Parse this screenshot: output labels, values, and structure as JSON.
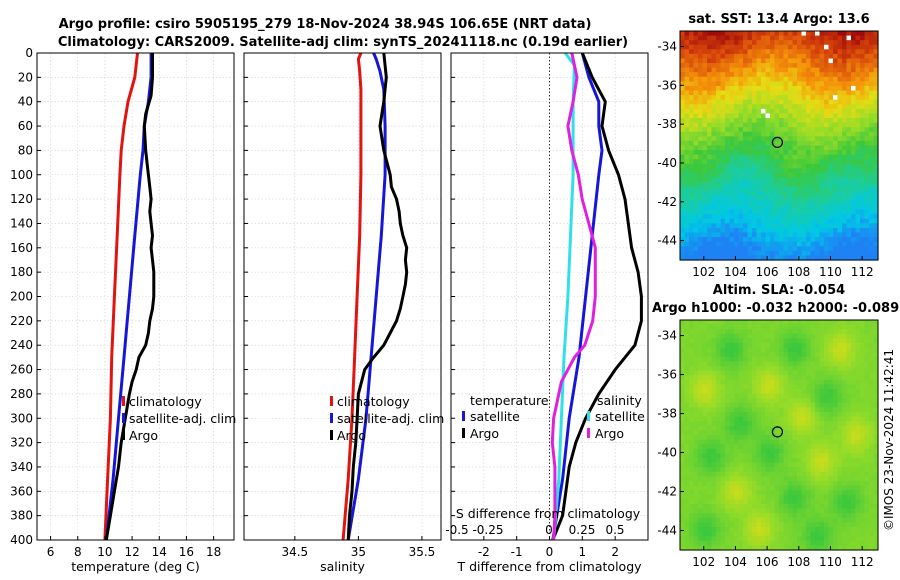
{
  "header": {
    "line1": "Argo profile: csiro 5905195_279 18-Nov-2024 38.94S 106.65E (NRT data)",
    "line2": "Climatology: CARS2009. Satellite-adj clim: synTS_20241118.nc (0.19d earlier)"
  },
  "colors": {
    "climatology": "#e0150f",
    "sat_temp": "#1616d8",
    "argo": "#000000",
    "sat_sal": "#30e0e8",
    "argo_sal": "#e020e0"
  },
  "chart_data": [
    {
      "id": "temperature",
      "type": "line",
      "xlabel": "temperature (deg C)",
      "ylabel": "",
      "xlim": [
        5,
        19.5
      ],
      "ylim": [
        400,
        0
      ],
      "xticks": [
        "6",
        "8",
        "10",
        "12",
        "14",
        "16",
        "18"
      ],
      "xtick_values": [
        6,
        8,
        10,
        12,
        14,
        16,
        18
      ],
      "yticks": [
        "0",
        "20",
        "40",
        "60",
        "80",
        "100",
        "120",
        "140",
        "160",
        "180",
        "200",
        "220",
        "240",
        "260",
        "280",
        "300",
        "320",
        "340",
        "360",
        "380",
        "400"
      ],
      "ytick_values": [
        0,
        20,
        40,
        60,
        80,
        100,
        120,
        140,
        160,
        180,
        200,
        220,
        240,
        260,
        280,
        300,
        320,
        340,
        360,
        380,
        400
      ],
      "legend": [
        "climatology",
        "satellite-adj. clim",
        "Argo"
      ],
      "series": [
        {
          "name": "climatology",
          "color": "#e0150f",
          "depth": [
            0,
            20,
            40,
            60,
            80,
            100,
            150,
            200,
            250,
            300,
            350,
            400
          ],
          "values": [
            12.4,
            12.2,
            11.7,
            11.4,
            11.2,
            11.1,
            10.9,
            10.7,
            10.5,
            10.4,
            10.2,
            10.0
          ]
        },
        {
          "name": "satellite-adj. clim",
          "color": "#1616d8",
          "depth": [
            0,
            20,
            40,
            60,
            80,
            100,
            150,
            200,
            250,
            300,
            350,
            400
          ],
          "values": [
            13.4,
            13.4,
            13.2,
            12.9,
            12.8,
            12.6,
            12.2,
            11.8,
            11.4,
            11.0,
            10.6,
            10.1
          ]
        },
        {
          "name": "Argo",
          "color": "#000000",
          "depth": [
            0,
            20,
            35,
            50,
            60,
            80,
            90,
            100,
            110,
            120,
            130,
            140,
            150,
            160,
            170,
            180,
            190,
            200,
            210,
            220,
            230,
            240,
            250,
            260,
            270,
            280,
            300,
            320,
            340,
            360,
            380,
            400
          ],
          "values": [
            13.5,
            13.5,
            13.4,
            13.0,
            12.9,
            13.0,
            13.1,
            13.2,
            13.3,
            13.4,
            13.3,
            13.4,
            13.5,
            13.4,
            13.5,
            13.6,
            13.6,
            13.6,
            13.5,
            13.3,
            13.2,
            13.0,
            12.5,
            12.3,
            12.0,
            11.8,
            11.5,
            11.2,
            11.0,
            10.7,
            10.4,
            10.1
          ]
        }
      ]
    },
    {
      "id": "salinity",
      "type": "line",
      "xlabel": "salinity",
      "xlim": [
        34.1,
        35.65
      ],
      "ylim": [
        400,
        0
      ],
      "xticks": [
        "34.5",
        "35",
        "35.5"
      ],
      "xtick_values": [
        34.5,
        35.0,
        35.5
      ],
      "legend": [
        "climatology",
        "satellite-adj. clim",
        "Argo"
      ],
      "series": [
        {
          "name": "climatology",
          "color": "#e0150f",
          "depth": [
            0,
            5,
            15,
            30,
            60,
            100,
            150,
            200,
            250,
            300,
            350,
            400
          ],
          "values": [
            35.02,
            35.0,
            35.01,
            35.02,
            35.02,
            35.02,
            35.01,
            34.99,
            34.97,
            34.95,
            34.92,
            34.88
          ]
        },
        {
          "name": "satellite-adj. clim",
          "color": "#1616d8",
          "depth": [
            0,
            5,
            15,
            30,
            60,
            100,
            150,
            200,
            250,
            300,
            350,
            400
          ],
          "values": [
            35.12,
            35.14,
            35.17,
            35.2,
            35.21,
            35.21,
            35.18,
            35.14,
            35.1,
            35.06,
            35.0,
            34.92
          ]
        },
        {
          "name": "Argo",
          "color": "#000000",
          "depth": [
            0,
            20,
            40,
            60,
            80,
            100,
            110,
            120,
            130,
            140,
            150,
            160,
            170,
            180,
            190,
            200,
            210,
            220,
            230,
            240,
            250,
            260,
            280,
            300,
            320,
            340,
            360,
            380,
            400
          ],
          "values": [
            35.2,
            35.22,
            35.2,
            35.17,
            35.2,
            35.25,
            35.26,
            35.3,
            35.32,
            35.33,
            35.35,
            35.38,
            35.37,
            35.38,
            35.37,
            35.35,
            35.33,
            35.3,
            35.25,
            35.2,
            35.12,
            35.05,
            35.0,
            34.99,
            34.98,
            34.96,
            34.95,
            34.93,
            34.92
          ]
        }
      ]
    },
    {
      "id": "difference",
      "type": "line",
      "xlabel": "T difference from climatology",
      "top_xlabel": "S difference from climatology",
      "xlim": [
        -3,
        3
      ],
      "ylim": [
        400,
        0
      ],
      "xticks": [
        "-2",
        "-1",
        "0",
        "1",
        "2"
      ],
      "xtick_values": [
        -2,
        -1,
        0,
        1,
        2
      ],
      "top_xticks": [
        "-0.5",
        "-0.25",
        "0",
        "0.25",
        "0.5"
      ],
      "top_xtick_values": [
        -0.5,
        -0.25,
        0,
        0.25,
        0.5
      ],
      "legend_temperature_title": "temperature",
      "legend_salinity_title": "salinity",
      "legend": [
        "satellite",
        "Argo",
        "satellite",
        "Argo"
      ],
      "series": [
        {
          "name": "T satellite",
          "color": "#1616d8",
          "depth": [
            0,
            20,
            40,
            60,
            80,
            100,
            150,
            200,
            250,
            300,
            350,
            400
          ],
          "values": [
            1.0,
            1.2,
            1.5,
            1.5,
            1.6,
            1.5,
            1.3,
            1.1,
            0.9,
            0.6,
            0.4,
            0.1
          ]
        },
        {
          "name": "T Argo",
          "color": "#000000",
          "depth": [
            0,
            20,
            40,
            60,
            80,
            100,
            120,
            140,
            160,
            180,
            200,
            220,
            240,
            260,
            280,
            300,
            320,
            340,
            360,
            380,
            400
          ],
          "values": [
            1.0,
            1.3,
            1.7,
            1.6,
            1.8,
            2.1,
            2.3,
            2.4,
            2.5,
            2.7,
            2.8,
            2.8,
            2.6,
            2.0,
            1.5,
            1.1,
            0.8,
            0.6,
            0.5,
            0.4,
            0.1
          ]
        },
        {
          "name": "S satellite",
          "color": "#30e0e8",
          "depth": [
            0,
            10,
            40,
            80,
            100,
            150,
            200,
            250,
            300,
            350,
            400
          ],
          "values": [
            0.13,
            0.2,
            0.19,
            0.19,
            0.19,
            0.17,
            0.15,
            0.12,
            0.1,
            0.08,
            0.04
          ]
        },
        {
          "name": "S Argo",
          "color": "#e020e0",
          "depth": [
            0,
            20,
            40,
            60,
            80,
            100,
            120,
            140,
            160,
            180,
            200,
            220,
            240,
            250,
            260,
            270,
            280,
            300,
            320,
            340,
            360,
            380,
            400
          ],
          "values": [
            0.18,
            0.22,
            0.19,
            0.15,
            0.18,
            0.23,
            0.26,
            0.31,
            0.36,
            0.36,
            0.36,
            0.34,
            0.28,
            0.2,
            0.15,
            0.1,
            0.08,
            0.04,
            0.03,
            0.05,
            0.05,
            0.05,
            0.04
          ]
        }
      ]
    },
    {
      "id": "sst_map",
      "type": "heatmap",
      "title": "sat. SST: 13.4  Argo: 13.6",
      "xlim": [
        100.5,
        113
      ],
      "ylim": [
        -45,
        -33.2
      ],
      "xticks": [
        "102",
        "104",
        "106",
        "108",
        "110",
        "112"
      ],
      "xtick_values": [
        102,
        104,
        106,
        108,
        110,
        112
      ],
      "yticks": [
        "-34",
        "-36",
        "-38",
        "-40",
        "-42",
        "-44"
      ],
      "ytick_values": [
        -34,
        -36,
        -38,
        -40,
        -42,
        -44
      ],
      "marker": {
        "lon": 106.65,
        "lat": -38.94
      }
    },
    {
      "id": "sla_map",
      "type": "heatmap",
      "title": "Altim. SLA: -0.054",
      "subtitle": "Argo h1000: -0.032 h2000: -0.089",
      "xlim": [
        100.5,
        113
      ],
      "ylim": [
        -45,
        -33.2
      ],
      "xticks": [
        "102",
        "104",
        "106",
        "108",
        "110",
        "112"
      ],
      "xtick_values": [
        102,
        104,
        106,
        108,
        110,
        112
      ],
      "yticks": [
        "-34",
        "-36",
        "-38",
        "-40",
        "-42",
        "-44"
      ],
      "ytick_values": [
        -34,
        -36,
        -38,
        -40,
        -42,
        -44
      ],
      "marker": {
        "lon": 106.65,
        "lat": -38.94
      }
    }
  ],
  "footer": {
    "credit": "©IMOS 23-Nov-2024 11:42:41"
  }
}
